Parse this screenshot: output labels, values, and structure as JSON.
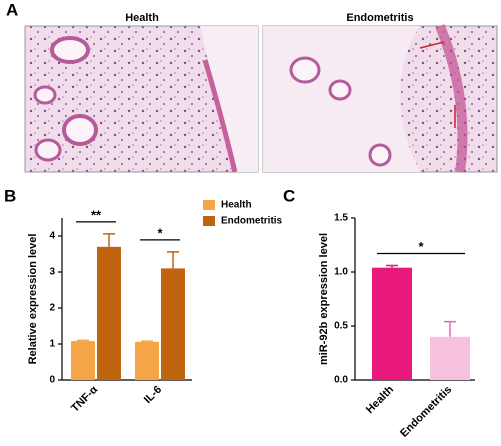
{
  "panel_labels": [
    "A",
    "B",
    "C"
  ],
  "histology": {
    "titles": [
      "Health",
      "Endometritis"
    ]
  },
  "chart_data": [
    {
      "type": "bar",
      "ylabel": "Relative expression level",
      "categories": [
        "TNF-α",
        "IL-6"
      ],
      "series": [
        {
          "name": "Health",
          "color": "#f5a447",
          "values": [
            1.08,
            1.06
          ],
          "errors": [
            0.02,
            0.02
          ]
        },
        {
          "name": "Endometritis",
          "color": "#c0640f",
          "values": [
            3.7,
            3.1
          ],
          "errors": [
            0.36,
            0.46
          ]
        }
      ],
      "annotations": [
        "**",
        "*"
      ],
      "ylim": [
        0,
        4.5
      ],
      "yticks": [
        0,
        1,
        2,
        3,
        4
      ]
    },
    {
      "type": "bar",
      "ylabel": "miR-92b expression level",
      "categories": [
        "Health",
        "Endometritis"
      ],
      "series": [
        {
          "colors": [
            "#e8197b",
            "#f7c1de"
          ],
          "values": [
            1.04,
            0.4
          ],
          "errors": [
            0.02,
            0.14
          ]
        }
      ],
      "annotations": [
        "*"
      ],
      "ylim": [
        0,
        1.5
      ],
      "yticks": [
        {
          "value": 0,
          "label": "0.0"
        },
        0.5,
        {
          "value": 1,
          "label": "1.0"
        },
        1.5
      ]
    }
  ]
}
